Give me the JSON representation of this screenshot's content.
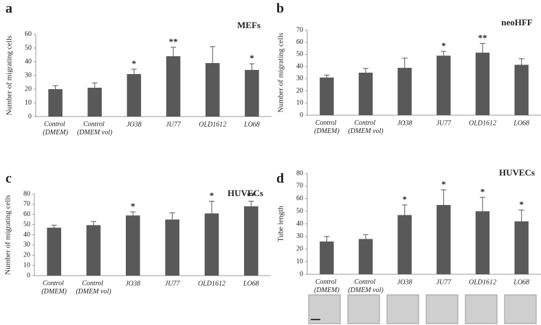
{
  "chart_data": [
    {
      "type": "bar",
      "panel": "a",
      "title": "MEFs",
      "ylabel": "Number of migrating cells",
      "color": "#595959",
      "categories": [
        "Control (DMEM)",
        "Control (DMEM vol)",
        "JO38",
        "JU77",
        "OLD1612",
        "LO68"
      ],
      "values": [
        20,
        21,
        31,
        44,
        39,
        34
      ],
      "errors": [
        2.5,
        3.5,
        3.5,
        6.5,
        12,
        4.5
      ],
      "significance": [
        null,
        null,
        "*",
        "**",
        null,
        "*"
      ],
      "ylim": [
        0,
        60
      ],
      "yticks": [
        0,
        10,
        20,
        30,
        40,
        50,
        60
      ]
    },
    {
      "type": "bar",
      "panel": "b",
      "title": "neoHFF",
      "ylabel": "Number of migrating cells",
      "color": "#595959",
      "categories": [
        "Control (DMEM)",
        "Control (DMEM vol)",
        "JO38",
        "JU77",
        "OLD1612",
        "LO68"
      ],
      "values": [
        31,
        35,
        39,
        49,
        51.5,
        41.5
      ],
      "errors": [
        2,
        3.5,
        8,
        3.5,
        7.5,
        5
      ],
      "significance": [
        null,
        null,
        null,
        "*",
        "**",
        null
      ],
      "ylim": [
        0,
        70
      ],
      "yticks": [
        0,
        10,
        20,
        30,
        40,
        50,
        60,
        70
      ]
    },
    {
      "type": "bar",
      "panel": "c",
      "title": "HUVECs",
      "ylabel": "Number of migrating cells",
      "color": "#595959",
      "categories": [
        "Control (DMEM)",
        "Control (DMEM vol)",
        "JO38",
        "JU77",
        "OLD1612",
        "LO68"
      ],
      "values": [
        47,
        49.5,
        59,
        55,
        61,
        68
      ],
      "errors": [
        2.5,
        3.5,
        3.5,
        6.5,
        12,
        5
      ],
      "significance": [
        null,
        null,
        "*",
        null,
        "*",
        "**"
      ],
      "ylim": [
        0,
        80
      ],
      "yticks": [
        0,
        10,
        20,
        30,
        40,
        50,
        60,
        70,
        80
      ]
    },
    {
      "type": "bar",
      "panel": "d",
      "title": "HUVECs",
      "ylabel": "Tube length",
      "color": "#595959",
      "categories": [
        "Control (DMEM)",
        "Control (DMEM vol)",
        "JO38",
        "JU77",
        "OLD1612",
        "LO68"
      ],
      "values": [
        26,
        28,
        47,
        55,
        50,
        42
      ],
      "errors": [
        4,
        3.5,
        8,
        12,
        11,
        9
      ],
      "significance": [
        null,
        null,
        "*",
        "*",
        "*",
        "*"
      ],
      "ylim": [
        0,
        80
      ],
      "yticks": [
        0,
        10,
        20,
        30,
        40,
        50,
        60,
        70,
        80
      ]
    }
  ]
}
